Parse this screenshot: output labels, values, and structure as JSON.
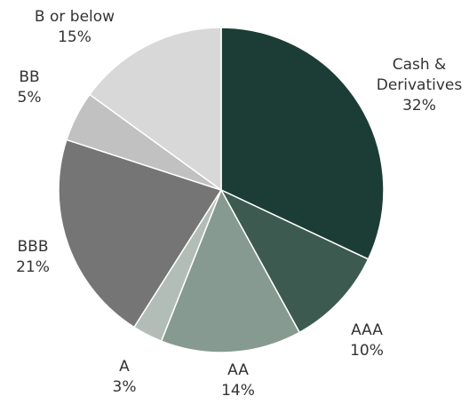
{
  "chart_data": {
    "type": "pie",
    "slices": [
      {
        "label_lines": [
          "Cash &",
          "Derivatives"
        ],
        "pct_label": "32%",
        "value": 32,
        "color": "#1c3d35"
      },
      {
        "label_lines": [
          "AAA"
        ],
        "pct_label": "10%",
        "value": 10,
        "color": "#3d5a51"
      },
      {
        "label_lines": [
          "AA"
        ],
        "pct_label": "14%",
        "value": 14,
        "color": "#879a91"
      },
      {
        "label_lines": [
          "A"
        ],
        "pct_label": "3%",
        "value": 3,
        "color": "#b3bdb7"
      },
      {
        "label_lines": [
          "BBB"
        ],
        "pct_label": "21%",
        "value": 21,
        "color": "#757575"
      },
      {
        "label_lines": [
          "BB"
        ],
        "pct_label": "5%",
        "value": 5,
        "color": "#c1c1c1"
      },
      {
        "label_lines": [
          "B or below"
        ],
        "pct_label": "15%",
        "value": 15,
        "color": "#d8d8d8"
      }
    ],
    "start_angle_deg": 0,
    "direction": "clockwise"
  }
}
